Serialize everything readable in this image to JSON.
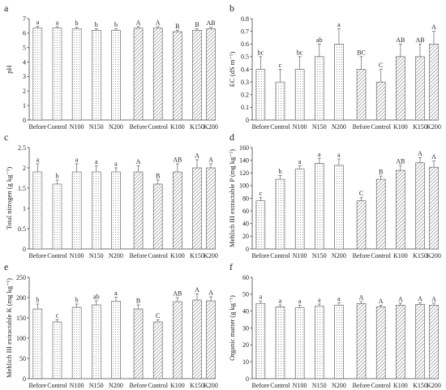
{
  "chart_data": [
    {
      "type": "bar",
      "panel": "a",
      "ylabel": "pH",
      "ylim": [
        0,
        7
      ],
      "yticks": [
        "0",
        "1",
        "2",
        "3",
        "4",
        "5",
        "6",
        "7"
      ],
      "groups": [
        {
          "categories": [
            "Before",
            "Control",
            "N100",
            "N150",
            "N200"
          ],
          "values": [
            6.35,
            6.35,
            6.3,
            6.2,
            6.2
          ],
          "errors": [
            0.12,
            0.1,
            0.1,
            0.1,
            0.1
          ],
          "letters": [
            "a",
            "a",
            "b",
            "b",
            "b"
          ]
        },
        {
          "categories": [
            "Before",
            "Control",
            "K100",
            "K150",
            "K200"
          ],
          "values": [
            6.35,
            6.35,
            6.1,
            6.2,
            6.3
          ],
          "errors": [
            0.1,
            0.1,
            0.1,
            0.1,
            0.1
          ],
          "letters": [
            "A",
            "A",
            "B",
            "B",
            "AB"
          ]
        }
      ]
    },
    {
      "type": "bar",
      "panel": "b",
      "ylabel": "EC (dS m⁻¹)",
      "ylim": [
        0,
        0.8
      ],
      "yticks": [
        "0",
        "0.1",
        "0.2",
        "0.3",
        "0.4",
        "0.5",
        "0.6",
        "0.7",
        "0.8"
      ],
      "groups": [
        {
          "categories": [
            "Before",
            "Control",
            "N100",
            "N150",
            "N200"
          ],
          "values": [
            0.4,
            0.3,
            0.4,
            0.5,
            0.6
          ],
          "errors": [
            0.1,
            0.1,
            0.1,
            0.1,
            0.12
          ],
          "letters": [
            "bc",
            "c",
            "bc",
            "ab",
            "a"
          ]
        },
        {
          "categories": [
            "Before",
            "Control",
            "K100",
            "K150",
            "K200"
          ],
          "values": [
            0.4,
            0.3,
            0.5,
            0.5,
            0.6
          ],
          "errors": [
            0.1,
            0.1,
            0.1,
            0.1,
            0.1
          ],
          "letters": [
            "BC",
            "C",
            "AB",
            "AB",
            "A"
          ]
        }
      ]
    },
    {
      "type": "bar",
      "panel": "c",
      "ylabel": "Total nitrogen (g kg⁻¹)",
      "ylim": [
        0,
        2.5
      ],
      "yticks": [
        "0",
        "0.5",
        "1",
        "1.5",
        "2",
        "2.5"
      ],
      "groups": [
        {
          "categories": [
            "Before",
            "Control",
            "N100",
            "N150",
            "N200"
          ],
          "values": [
            1.9,
            1.6,
            1.9,
            1.9,
            1.9
          ],
          "errors": [
            0.2,
            0.1,
            0.2,
            0.15,
            0.1
          ],
          "letters": [
            "a",
            "b",
            "a",
            "a",
            "a"
          ]
        },
        {
          "categories": [
            "Before",
            "Control",
            "K100",
            "K150",
            "K200"
          ],
          "values": [
            1.9,
            1.6,
            1.9,
            2.0,
            2.0
          ],
          "errors": [
            0.15,
            0.1,
            0.2,
            0.2,
            0.1
          ],
          "letters": [
            "A",
            "B",
            "AB",
            "A",
            "A"
          ]
        }
      ]
    },
    {
      "type": "bar",
      "panel": "d",
      "ylabel": "Mehlich III extractable P (mg kg⁻¹)",
      "ylim": [
        0,
        160
      ],
      "yticks": [
        "0",
        "20",
        "40",
        "60",
        "80",
        "100",
        "120",
        "140",
        "160"
      ],
      "groups": [
        {
          "categories": [
            "Before",
            "Control",
            "N100",
            "N150",
            "N200"
          ],
          "values": [
            76,
            110,
            126,
            135,
            132
          ],
          "errors": [
            5,
            6,
            5,
            8,
            10
          ],
          "letters": [
            "c",
            "b",
            "a",
            "a",
            "a"
          ]
        },
        {
          "categories": [
            "Before",
            "Control",
            "K100",
            "K150",
            "K200"
          ],
          "values": [
            76,
            110,
            124,
            136,
            129
          ],
          "errors": [
            5,
            5,
            8,
            8,
            10
          ],
          "letters": [
            "C",
            "B",
            "AB",
            "A",
            "A"
          ]
        }
      ]
    },
    {
      "type": "bar",
      "panel": "e",
      "ylabel": "Mehlich III extractable K (mg kg⁻¹)",
      "ylim": [
        0,
        250
      ],
      "yticks": [
        "0",
        "50",
        "100",
        "150",
        "200",
        "250"
      ],
      "groups": [
        {
          "categories": [
            "Before",
            "Control",
            "N100",
            "N150",
            "N200"
          ],
          "values": [
            172,
            140,
            176,
            182,
            191
          ],
          "errors": [
            12,
            6,
            8,
            10,
            10
          ],
          "letters": [
            "b",
            "c",
            "b",
            "ab",
            "a"
          ]
        },
        {
          "categories": [
            "Before",
            "Control",
            "K100",
            "K150",
            "K200"
          ],
          "values": [
            172,
            140,
            190,
            194,
            192
          ],
          "errors": [
            10,
            5,
            10,
            15,
            10
          ],
          "letters": [
            "B",
            "C",
            "AB",
            "A",
            "A"
          ]
        }
      ]
    },
    {
      "type": "bar",
      "panel": "f",
      "ylabel": "Organic matter (g kg⁻¹)",
      "ylim": [
        0,
        60
      ],
      "yticks": [
        "0",
        "10",
        "20",
        "30",
        "40",
        "50",
        "60"
      ],
      "groups": [
        {
          "categories": [
            "Before",
            "Control",
            "N100",
            "N150",
            "N200"
          ],
          "values": [
            44.5,
            42.5,
            42,
            43,
            43.5
          ],
          "errors": [
            1.5,
            1.2,
            1.5,
            1.2,
            1.5
          ],
          "letters": [
            "a",
            "a",
            "a",
            "a",
            "a"
          ]
        },
        {
          "categories": [
            "Before",
            "Control",
            "K100",
            "K150",
            "K200"
          ],
          "values": [
            44.5,
            42.5,
            43.5,
            44,
            43.5
          ],
          "errors": [
            1.2,
            1,
            1.2,
            1,
            1.2
          ],
          "letters": [
            "A",
            "A",
            "A",
            "A",
            "A"
          ]
        }
      ]
    }
  ],
  "colors": {
    "bar_stroke": "#555555",
    "pattern": "#777777",
    "text": "#222222"
  }
}
